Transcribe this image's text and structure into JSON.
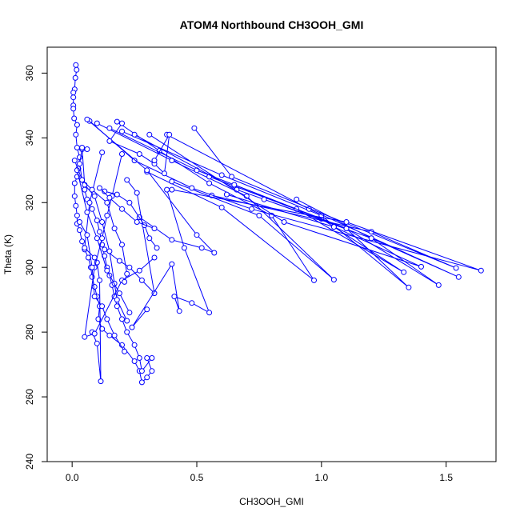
{
  "chart_data": {
    "type": "line",
    "title": "ATOM4 Northbound CH3OOH_GMI",
    "xlabel": "CH3OOH_GMI",
    "ylabel": "Theta (K)",
    "xlim": [
      -0.1,
      1.7
    ],
    "ylim": [
      240,
      368
    ],
    "xticks": [
      0.0,
      0.5,
      1.0,
      1.5
    ],
    "xtick_labels": [
      "0.0",
      "0.5",
      "1.0",
      "1.5"
    ],
    "yticks": [
      240,
      260,
      280,
      300,
      320,
      340,
      360
    ],
    "ytick_labels": [
      "240",
      "260",
      "280",
      "300",
      "320",
      "340",
      "360"
    ],
    "grid": false,
    "series_color": "#0000ff",
    "marker": "open-circle",
    "series": [
      {
        "values": [
          [
            0.015,
            362.5
          ],
          [
            0.018,
            361.0
          ],
          [
            0.013,
            358.5
          ],
          [
            0.01,
            355.0
          ],
          [
            0.005,
            354.0
          ],
          [
            0.005,
            352.5
          ],
          [
            0.005,
            350.0
          ],
          [
            0.005,
            349.0
          ],
          [
            0.008,
            346.0
          ],
          [
            0.02,
            344.0
          ],
          [
            0.015,
            341.0
          ],
          [
            0.02,
            337.0
          ],
          [
            0.03,
            334.0
          ],
          [
            0.025,
            330.5
          ],
          [
            0.02,
            328.0
          ],
          [
            0.01,
            326.0
          ],
          [
            0.01,
            322.0
          ],
          [
            0.015,
            319.0
          ],
          [
            0.02,
            316.0
          ],
          [
            0.02,
            313.5
          ],
          [
            0.03,
            311.5
          ],
          [
            0.04,
            308.0
          ],
          [
            0.05,
            305.5
          ],
          [
            0.065,
            303.0
          ],
          [
            0.075,
            300.0
          ],
          [
            0.08,
            297.0
          ],
          [
            0.09,
            294.0
          ],
          [
            0.1,
            291.0
          ],
          [
            0.11,
            288.0
          ],
          [
            0.105,
            284.0
          ],
          [
            0.12,
            281.0
          ],
          [
            0.15,
            279.0
          ],
          [
            0.2,
            276.0
          ],
          [
            0.25,
            271.0
          ],
          [
            0.27,
            268.0
          ],
          [
            0.28,
            264.5
          ],
          [
            0.3,
            266.0
          ],
          [
            0.32,
            268.0
          ],
          [
            0.3,
            272.0
          ]
        ]
      },
      {
        "values": [
          [
            0.06,
            336.5
          ],
          [
            0.04,
            336.5
          ],
          [
            0.03,
            332.0
          ],
          [
            0.04,
            327.0
          ],
          [
            0.05,
            324.0
          ],
          [
            0.06,
            321.0
          ],
          [
            0.08,
            318.0
          ],
          [
            0.1,
            314.5
          ],
          [
            0.11,
            311.0
          ],
          [
            0.12,
            307.0
          ],
          [
            0.13,
            303.5
          ],
          [
            0.14,
            300.0
          ],
          [
            0.15,
            297.5
          ],
          [
            0.16,
            294.5
          ],
          [
            0.17,
            291.0
          ],
          [
            0.18,
            288.0
          ],
          [
            0.2,
            284.0
          ],
          [
            0.22,
            280.0
          ],
          [
            0.25,
            276.0
          ],
          [
            0.27,
            272.0
          ],
          [
            0.28,
            268.0
          ],
          [
            0.32,
            272.0
          ]
        ]
      },
      {
        "values": [
          [
            0.18,
            345.0
          ],
          [
            0.35,
            336.0
          ],
          [
            0.55,
            326.0
          ],
          [
            0.8,
            316.0
          ],
          [
            0.97,
            296.0
          ],
          [
            0.6,
            318.5
          ],
          [
            0.3,
            329.5
          ]
        ]
      },
      {
        "values": [
          [
            0.1,
            344.5
          ],
          [
            0.4,
            333.0
          ],
          [
            0.7,
            322.0
          ],
          [
            1.05,
            296.2
          ],
          [
            0.75,
            316.0
          ],
          [
            0.4,
            326.5
          ]
        ]
      },
      {
        "values": [
          [
            0.15,
            343.0
          ],
          [
            0.5,
            330.0
          ],
          [
            0.9,
            318.0
          ],
          [
            1.33,
            298.5
          ],
          [
            1.0,
            315.0
          ],
          [
            0.55,
            328.0
          ]
        ]
      },
      {
        "values": [
          [
            0.2,
            342.0
          ],
          [
            0.6,
            328.5
          ],
          [
            1.0,
            316.0
          ],
          [
            1.35,
            293.8
          ],
          [
            1.1,
            312.0
          ],
          [
            0.65,
            325.5
          ]
        ]
      },
      {
        "values": [
          [
            0.25,
            341.0
          ],
          [
            0.66,
            324.0
          ],
          [
            1.1,
            312.0
          ],
          [
            1.47,
            294.5
          ],
          [
            1.2,
            309.0
          ],
          [
            0.77,
            321.0
          ]
        ]
      },
      {
        "values": [
          [
            0.31,
            341.0
          ],
          [
            0.85,
            314.0
          ],
          [
            1.4,
            300.2
          ],
          [
            1.05,
            312.5
          ],
          [
            0.62,
            322.5
          ]
        ]
      },
      {
        "values": [
          [
            0.38,
            341.0
          ],
          [
            0.95,
            318.0
          ],
          [
            1.55,
            297.0
          ],
          [
            1.2,
            309.0
          ],
          [
            0.9,
            321.0
          ]
        ]
      },
      {
        "values": [
          [
            0.49,
            343.0
          ],
          [
            0.64,
            328.0
          ],
          [
            1.54,
            299.8
          ],
          [
            1.2,
            311.0
          ],
          [
            0.56,
            322.2
          ]
        ]
      },
      {
        "values": [
          [
            0.07,
            345.2
          ],
          [
            0.25,
            333.0
          ],
          [
            0.48,
            324.5
          ],
          [
            0.72,
            318.0
          ],
          [
            1.64,
            299.0
          ],
          [
            1.1,
            314.0
          ],
          [
            0.4,
            324.0
          ]
        ]
      },
      {
        "values": [
          [
            0.06,
            345.7
          ],
          [
            0.3,
            330.0
          ],
          [
            0.5,
            310.0
          ],
          [
            0.57,
            304.5
          ],
          [
            0.52,
            306.0
          ],
          [
            0.4,
            308.5
          ],
          [
            0.27,
            315.5
          ]
        ]
      },
      {
        "values": [
          [
            0.22,
            327.0
          ],
          [
            0.26,
            323.0
          ],
          [
            0.33,
            292.0
          ],
          [
            0.28,
            296.0
          ],
          [
            0.23,
            300.0
          ],
          [
            0.19,
            302.0
          ],
          [
            0.13,
            305.5
          ]
        ]
      },
      {
        "values": [
          [
            0.38,
            324.0
          ],
          [
            0.45,
            306.0
          ],
          [
            0.55,
            286.0
          ],
          [
            0.48,
            289.0
          ],
          [
            0.41,
            291.0
          ],
          [
            0.43,
            286.5
          ],
          [
            0.4,
            301.0
          ],
          [
            0.24,
            281.5
          ],
          [
            0.3,
            287.0
          ]
        ]
      },
      {
        "values": [
          [
            0.12,
            335.5
          ],
          [
            0.07,
            320.0
          ],
          [
            0.05,
            306.0
          ],
          [
            0.09,
            303.0
          ],
          [
            0.1,
            301.5
          ],
          [
            0.11,
            296.0
          ],
          [
            0.115,
            264.8
          ],
          [
            0.1,
            276.5
          ],
          [
            0.08,
            280.0
          ]
        ]
      },
      {
        "values": [
          [
            0.2,
            335.0
          ],
          [
            0.16,
            322.0
          ],
          [
            0.14,
            316.0
          ],
          [
            0.12,
            309.0
          ],
          [
            0.09,
            300.0
          ],
          [
            0.05,
            278.5
          ],
          [
            0.09,
            279.5
          ],
          [
            0.2,
            296.0
          ],
          [
            0.27,
            299.0
          ],
          [
            0.33,
            303.0
          ]
        ]
      },
      {
        "values": [
          [
            0.04,
            337.0
          ],
          [
            0.05,
            325.5
          ],
          [
            0.09,
            322.0
          ],
          [
            0.12,
            314.0
          ],
          [
            0.15,
            305.0
          ],
          [
            0.17,
            295.0
          ],
          [
            0.18,
            290.0
          ],
          [
            0.22,
            283.5
          ]
        ]
      },
      {
        "values": [
          [
            0.02,
            330.0
          ],
          [
            0.06,
            317.0
          ],
          [
            0.1,
            309.0
          ],
          [
            0.14,
            299.0
          ],
          [
            0.19,
            292.0
          ],
          [
            0.23,
            286.0
          ]
        ]
      },
      {
        "values": [
          [
            0.01,
            333.0
          ],
          [
            0.04,
            327.0
          ],
          [
            0.08,
            324.0
          ],
          [
            0.14,
            320.0
          ],
          [
            0.17,
            312.0
          ],
          [
            0.2,
            307.0
          ],
          [
            0.22,
            298.0
          ],
          [
            0.21,
            295.5
          ]
        ]
      },
      {
        "values": [
          [
            0.03,
            314.0
          ],
          [
            0.06,
            310.0
          ],
          [
            0.08,
            300.0
          ],
          [
            0.09,
            291.0
          ],
          [
            0.12,
            288.0
          ],
          [
            0.14,
            284.0
          ],
          [
            0.17,
            279.0
          ],
          [
            0.21,
            274.0
          ]
        ]
      },
      {
        "values": [
          [
            0.2,
            344.5
          ],
          [
            0.15,
            339.0
          ],
          [
            0.27,
            335.0
          ],
          [
            0.33,
            332.0
          ],
          [
            0.37,
            329.0
          ],
          [
            0.39,
            341.0
          ],
          [
            0.33,
            333.0
          ]
        ]
      },
      {
        "values": [
          [
            0.13,
            323.5
          ],
          [
            0.18,
            322.5
          ],
          [
            0.23,
            320.0
          ],
          [
            0.29,
            313.0
          ],
          [
            0.31,
            309.0
          ],
          [
            0.34,
            306.0
          ]
        ]
      },
      {
        "values": [
          [
            0.11,
            324.5
          ],
          [
            0.15,
            321.5
          ],
          [
            0.2,
            318.0
          ],
          [
            0.26,
            314.0
          ],
          [
            0.33,
            312.0
          ]
        ]
      }
    ]
  }
}
